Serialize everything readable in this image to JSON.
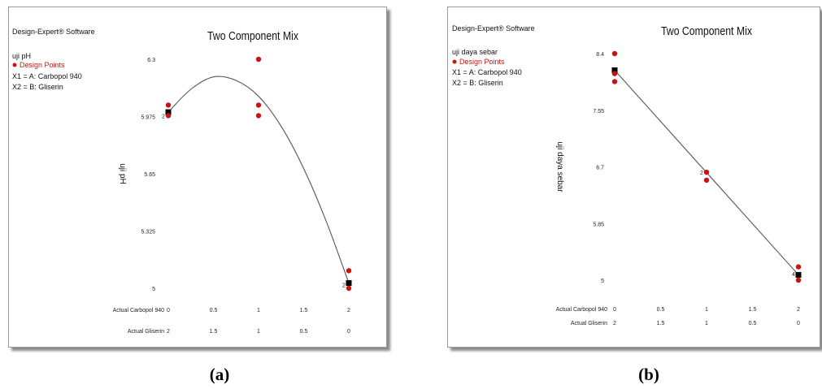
{
  "panels": [
    {
      "software": "Design-Expert® Software",
      "response": "uji pH",
      "design_points": "Design Points",
      "x1": "X1 = A: Carbopol 940",
      "x2": "X2 = B: Gliserin",
      "caption": "(a)"
    },
    {
      "software": "Design-Expert® Software",
      "response": "uji daya sebar",
      "design_points": "Design Points",
      "x1": "X1 = A: Carbopol 940",
      "x2": "X2 = B: Gliserin",
      "caption": "(b)"
    }
  ],
  "colors": {
    "design_point": "#cc1111",
    "fit_line": "#555555",
    "mean_marker": "#000000",
    "frame": "#9a9a9a"
  },
  "chart_data": [
    {
      "type": "scatter",
      "title": "Two Component Mix",
      "ylabel": "uji pH",
      "x_axis_rows": [
        {
          "label": "Actual Carbopol 940",
          "ticks": [
            "0",
            "0.5",
            "1",
            "1.5",
            "2"
          ]
        },
        {
          "label": "Actual Gliserin",
          "ticks": [
            "2",
            "1.5",
            "1",
            "0.5",
            "0"
          ]
        }
      ],
      "xlim": [
        0,
        2
      ],
      "ylim": [
        5,
        6.3
      ],
      "yticks": [
        "6.3",
        "5.975",
        "5.65",
        "5.325",
        "5"
      ],
      "design_points": [
        {
          "x": 0,
          "y": 6.04
        },
        {
          "x": 0,
          "y": 5.98
        },
        {
          "x": 1,
          "y": 6.3
        },
        {
          "x": 1,
          "y": 6.04
        },
        {
          "x": 1,
          "y": 5.98
        },
        {
          "x": 2,
          "y": 5.1
        },
        {
          "x": 2,
          "y": 5.0
        }
      ],
      "point_labels": [
        {
          "x": 0,
          "y": 5.98,
          "text": "2"
        },
        {
          "x": 2,
          "y": 5.02,
          "text": "2"
        }
      ],
      "mean_points": [
        {
          "x": 0,
          "y": 6.0
        },
        {
          "x": 2,
          "y": 5.03
        }
      ],
      "fit_curve": [
        {
          "x": 0,
          "y": 6.0
        },
        {
          "x": 0.25,
          "y": 6.13
        },
        {
          "x": 0.5,
          "y": 6.2
        },
        {
          "x": 0.75,
          "y": 6.18
        },
        {
          "x": 1,
          "y": 6.09
        },
        {
          "x": 1.25,
          "y": 5.92
        },
        {
          "x": 1.5,
          "y": 5.68
        },
        {
          "x": 1.75,
          "y": 5.38
        },
        {
          "x": 2,
          "y": 5.03
        }
      ]
    },
    {
      "type": "scatter",
      "title": "Two Component Mix",
      "ylabel": "uji daya sebar",
      "x_axis_rows": [
        {
          "label": "Actual Carbopol 940",
          "ticks": [
            "0",
            "0.5",
            "1",
            "1.5",
            "2"
          ]
        },
        {
          "label": "Actual Gliserin",
          "ticks": [
            "2",
            "1.5",
            "1",
            "0.5",
            "0"
          ]
        }
      ],
      "xlim": [
        0,
        2
      ],
      "ylim": [
        5,
        8.4
      ],
      "yticks": [
        "8.4",
        "7.55",
        "6.7",
        "5.85",
        "5"
      ],
      "design_points": [
        {
          "x": 0,
          "y": 8.4
        },
        {
          "x": 0,
          "y": 8.1
        },
        {
          "x": 0,
          "y": 7.98
        },
        {
          "x": 1,
          "y": 6.62
        },
        {
          "x": 1,
          "y": 6.5
        },
        {
          "x": 2,
          "y": 5.2
        },
        {
          "x": 2,
          "y": 5.0
        }
      ],
      "point_labels": [
        {
          "x": 1,
          "y": 6.62,
          "text": "2"
        },
        {
          "x": 2,
          "y": 5.1,
          "text": "4"
        }
      ],
      "mean_points": [
        {
          "x": 0,
          "y": 8.15
        },
        {
          "x": 2,
          "y": 5.08
        }
      ],
      "fit_curve": [
        {
          "x": 0,
          "y": 8.15
        },
        {
          "x": 2,
          "y": 5.08
        }
      ]
    }
  ]
}
